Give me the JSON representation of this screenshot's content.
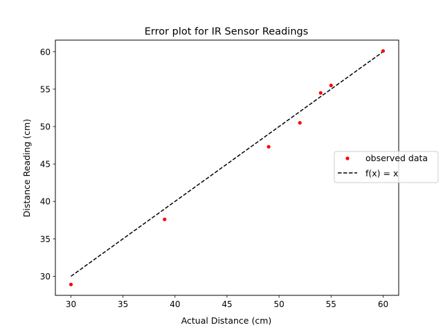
{
  "chart_data": {
    "type": "scatter",
    "title": "Error plot for IR Sensor Readings",
    "xlabel": "Actual Distance (cm)",
    "ylabel": "Distance Reading (cm)",
    "xlim": [
      28.5,
      61.5
    ],
    "ylim": [
      27.45,
      61.55
    ],
    "xticks": [
      30,
      35,
      40,
      45,
      50,
      55,
      60
    ],
    "yticks": [
      30,
      35,
      40,
      45,
      50,
      55,
      60
    ],
    "grid": false,
    "legend_position": "center-right",
    "series": [
      {
        "name": "observed data",
        "style": "markers",
        "color": "#ff0000",
        "x": [
          30,
          39,
          49,
          52,
          54,
          55,
          60
        ],
        "y": [
          28.9,
          37.6,
          47.3,
          50.5,
          54.5,
          55.5,
          60.1
        ]
      },
      {
        "name": "f(x) = x",
        "style": "dashed-line",
        "color": "#000000",
        "x": [
          30,
          60
        ],
        "y": [
          30,
          60
        ]
      }
    ]
  }
}
